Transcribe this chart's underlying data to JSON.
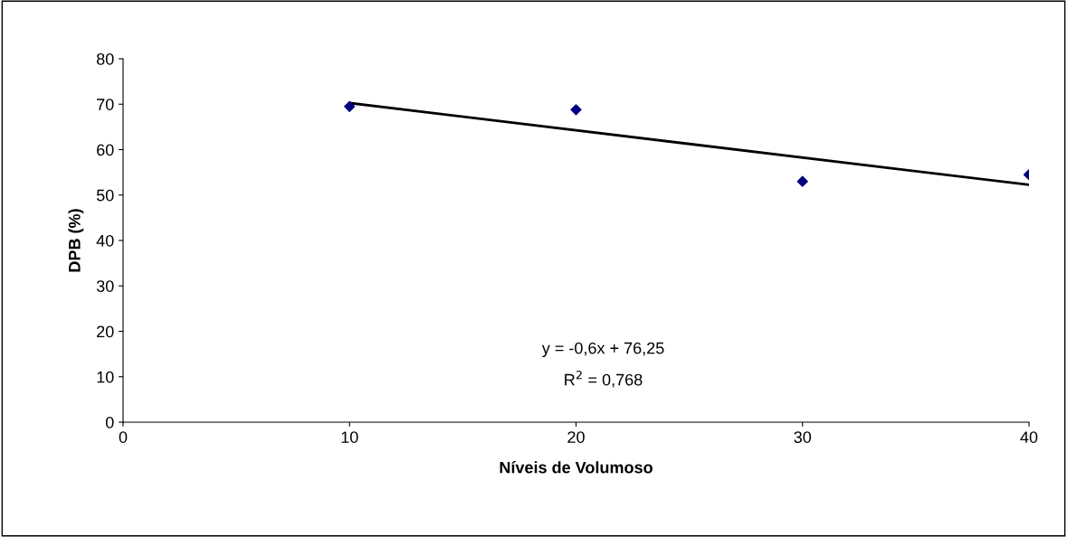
{
  "chart_data": {
    "type": "scatter",
    "xlabel": "Níveis de Volumoso",
    "ylabel": "DPB (%)",
    "x": [
      10,
      20,
      30,
      40
    ],
    "series": [
      {
        "color": "#000080",
        "marker": "diamond",
        "values": [
          69.5,
          68.8,
          53.0,
          54.5
        ]
      },
      {
        "type": "line",
        "color": "#000000",
        "x": [
          10,
          40
        ],
        "values": [
          70.25,
          52.25
        ]
      }
    ],
    "xlim": [
      0,
      40
    ],
    "xticks": [
      0,
      10,
      20,
      30,
      40
    ],
    "ylim": [
      0,
      80
    ],
    "yticks": [
      0,
      10,
      20,
      30,
      40,
      50,
      60,
      70,
      80
    ],
    "grid": false,
    "legend": false,
    "annotations": [
      "y = -0,6x + 76,25",
      "R$^{2}$ = 0,768"
    ]
  }
}
